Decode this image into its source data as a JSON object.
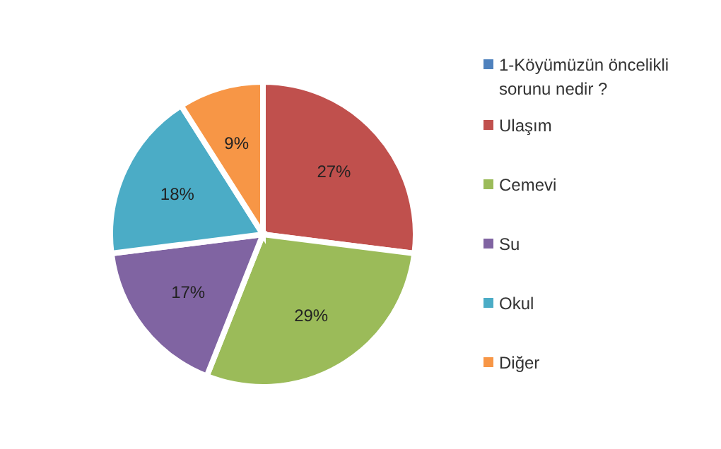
{
  "chart_data": {
    "type": "pie",
    "categories": [
      "1-Köyümüzün öncelikli sorunu nedir ?",
      "Ulaşım",
      "Cemevi",
      "Su",
      "Okul",
      "Diğer"
    ],
    "values": [
      0,
      27,
      29,
      17,
      18,
      9
    ],
    "colors": [
      "#4f81bd",
      "#c0504d",
      "#9bbb59",
      "#8064a2",
      "#4bacc6",
      "#f79646"
    ],
    "value_labels": [
      null,
      "27%",
      "29%",
      "17%",
      "18%",
      "9%"
    ],
    "legend": "right"
  }
}
